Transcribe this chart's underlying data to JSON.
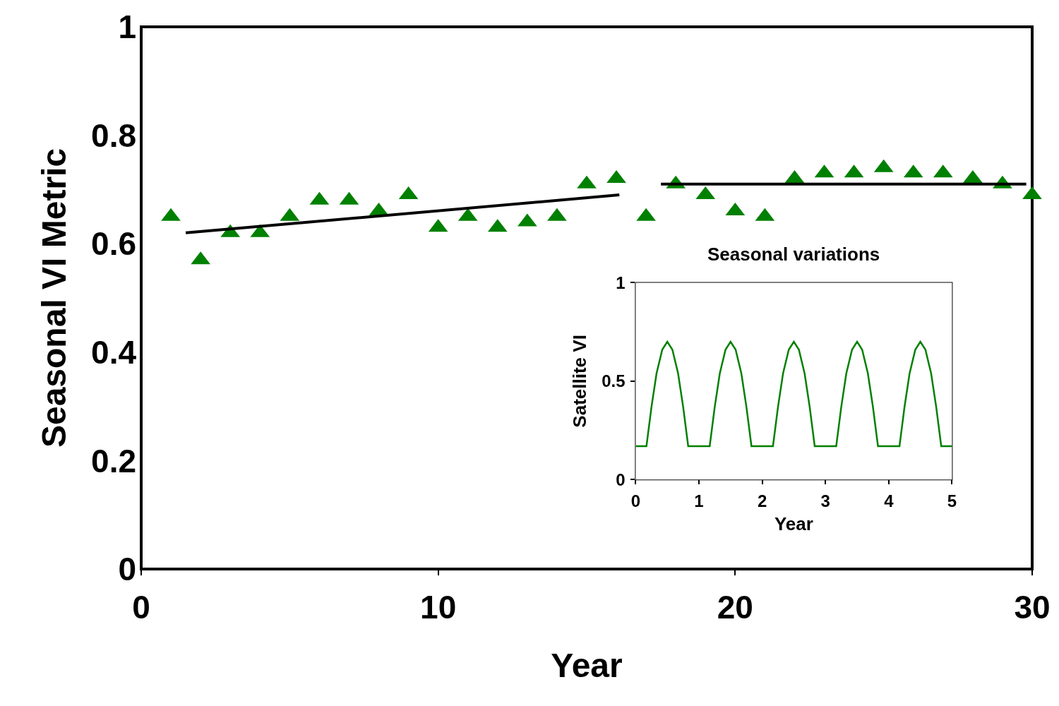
{
  "chart_data": [
    {
      "type": "scatter",
      "xlabel": "Year",
      "ylabel": "Seasonal VI Metric",
      "xlim": [
        0,
        30
      ],
      "xticks": [
        0,
        10,
        20,
        30
      ],
      "ylim": [
        0,
        1
      ],
      "yticks": [
        0,
        {
          "value": 0.2,
          "label": "0.2"
        },
        {
          "value": 0.4,
          "label": "0.4"
        },
        {
          "value": 0.6,
          "label": "0.6"
        },
        {
          "value": 0.8,
          "label": "0.8"
        },
        1
      ],
      "grid": false,
      "marker": "triangle",
      "x": [
        1,
        2,
        3,
        4,
        5,
        6,
        7,
        8,
        9,
        10,
        11,
        12,
        13,
        14,
        15,
        16,
        17,
        18,
        19,
        20,
        21,
        22,
        23,
        24,
        25,
        26,
        27,
        28,
        29,
        30
      ],
      "series": [
        {
          "color": "#008000",
          "values": [
            0.65,
            0.57,
            0.62,
            0.62,
            0.65,
            0.68,
            0.68,
            0.66,
            0.69,
            0.63,
            0.65,
            0.63,
            0.64,
            0.65,
            0.71,
            0.72,
            0.65,
            0.71,
            0.69,
            0.66,
            0.65,
            0.72,
            0.73,
            0.73,
            0.74,
            0.73,
            0.73,
            0.72,
            0.71,
            0.69
          ]
        },
        {
          "type": "line",
          "color": "#000000",
          "marker": "none",
          "line_style": "solid",
          "x": [
            1.5,
            16.1
          ],
          "values": [
            0.62,
            0.69
          ]
        },
        {
          "type": "line",
          "color": "#000000",
          "marker": "none",
          "line_style": "solid",
          "x": [
            17.5,
            29.8
          ],
          "values": [
            0.71,
            0.71
          ]
        }
      ]
    },
    {
      "type": "line",
      "title": "Seasonal variations",
      "xlabel": "Year",
      "ylabel": "Satellite VI",
      "xlim": [
        0,
        5
      ],
      "xticks": [
        0,
        1,
        2,
        3,
        4,
        5
      ],
      "ylim": [
        0,
        1
      ],
      "yticks": [
        0,
        {
          "value": 0.5,
          "label": "0.5"
        },
        1
      ],
      "grid": false,
      "marker": "none",
      "line_style": "solid",
      "series": [
        {
          "color": "#008000",
          "x": [
            0,
            0.17,
            0.25,
            0.33,
            0.42,
            0.5,
            0.58,
            0.67,
            0.75,
            0.83,
            1.17,
            1.25,
            1.33,
            1.42,
            1.5,
            1.58,
            1.67,
            1.75,
            1.83,
            2.17,
            2.25,
            2.33,
            2.42,
            2.5,
            2.58,
            2.67,
            2.75,
            2.83,
            3.17,
            3.25,
            3.33,
            3.42,
            3.5,
            3.58,
            3.67,
            3.75,
            3.83,
            4.17,
            4.25,
            4.33,
            4.42,
            4.5,
            4.58,
            4.67,
            4.75,
            4.83,
            5
          ],
          "values": [
            0.17,
            0.17,
            0.37,
            0.54,
            0.66,
            0.7,
            0.66,
            0.54,
            0.37,
            0.17,
            0.17,
            0.37,
            0.54,
            0.66,
            0.7,
            0.66,
            0.54,
            0.37,
            0.17,
            0.17,
            0.37,
            0.54,
            0.66,
            0.7,
            0.66,
            0.54,
            0.37,
            0.17,
            0.17,
            0.37,
            0.54,
            0.66,
            0.7,
            0.66,
            0.54,
            0.37,
            0.17,
            0.17,
            0.37,
            0.54,
            0.66,
            0.7,
            0.66,
            0.54,
            0.37,
            0.17,
            0.17
          ]
        }
      ]
    }
  ]
}
